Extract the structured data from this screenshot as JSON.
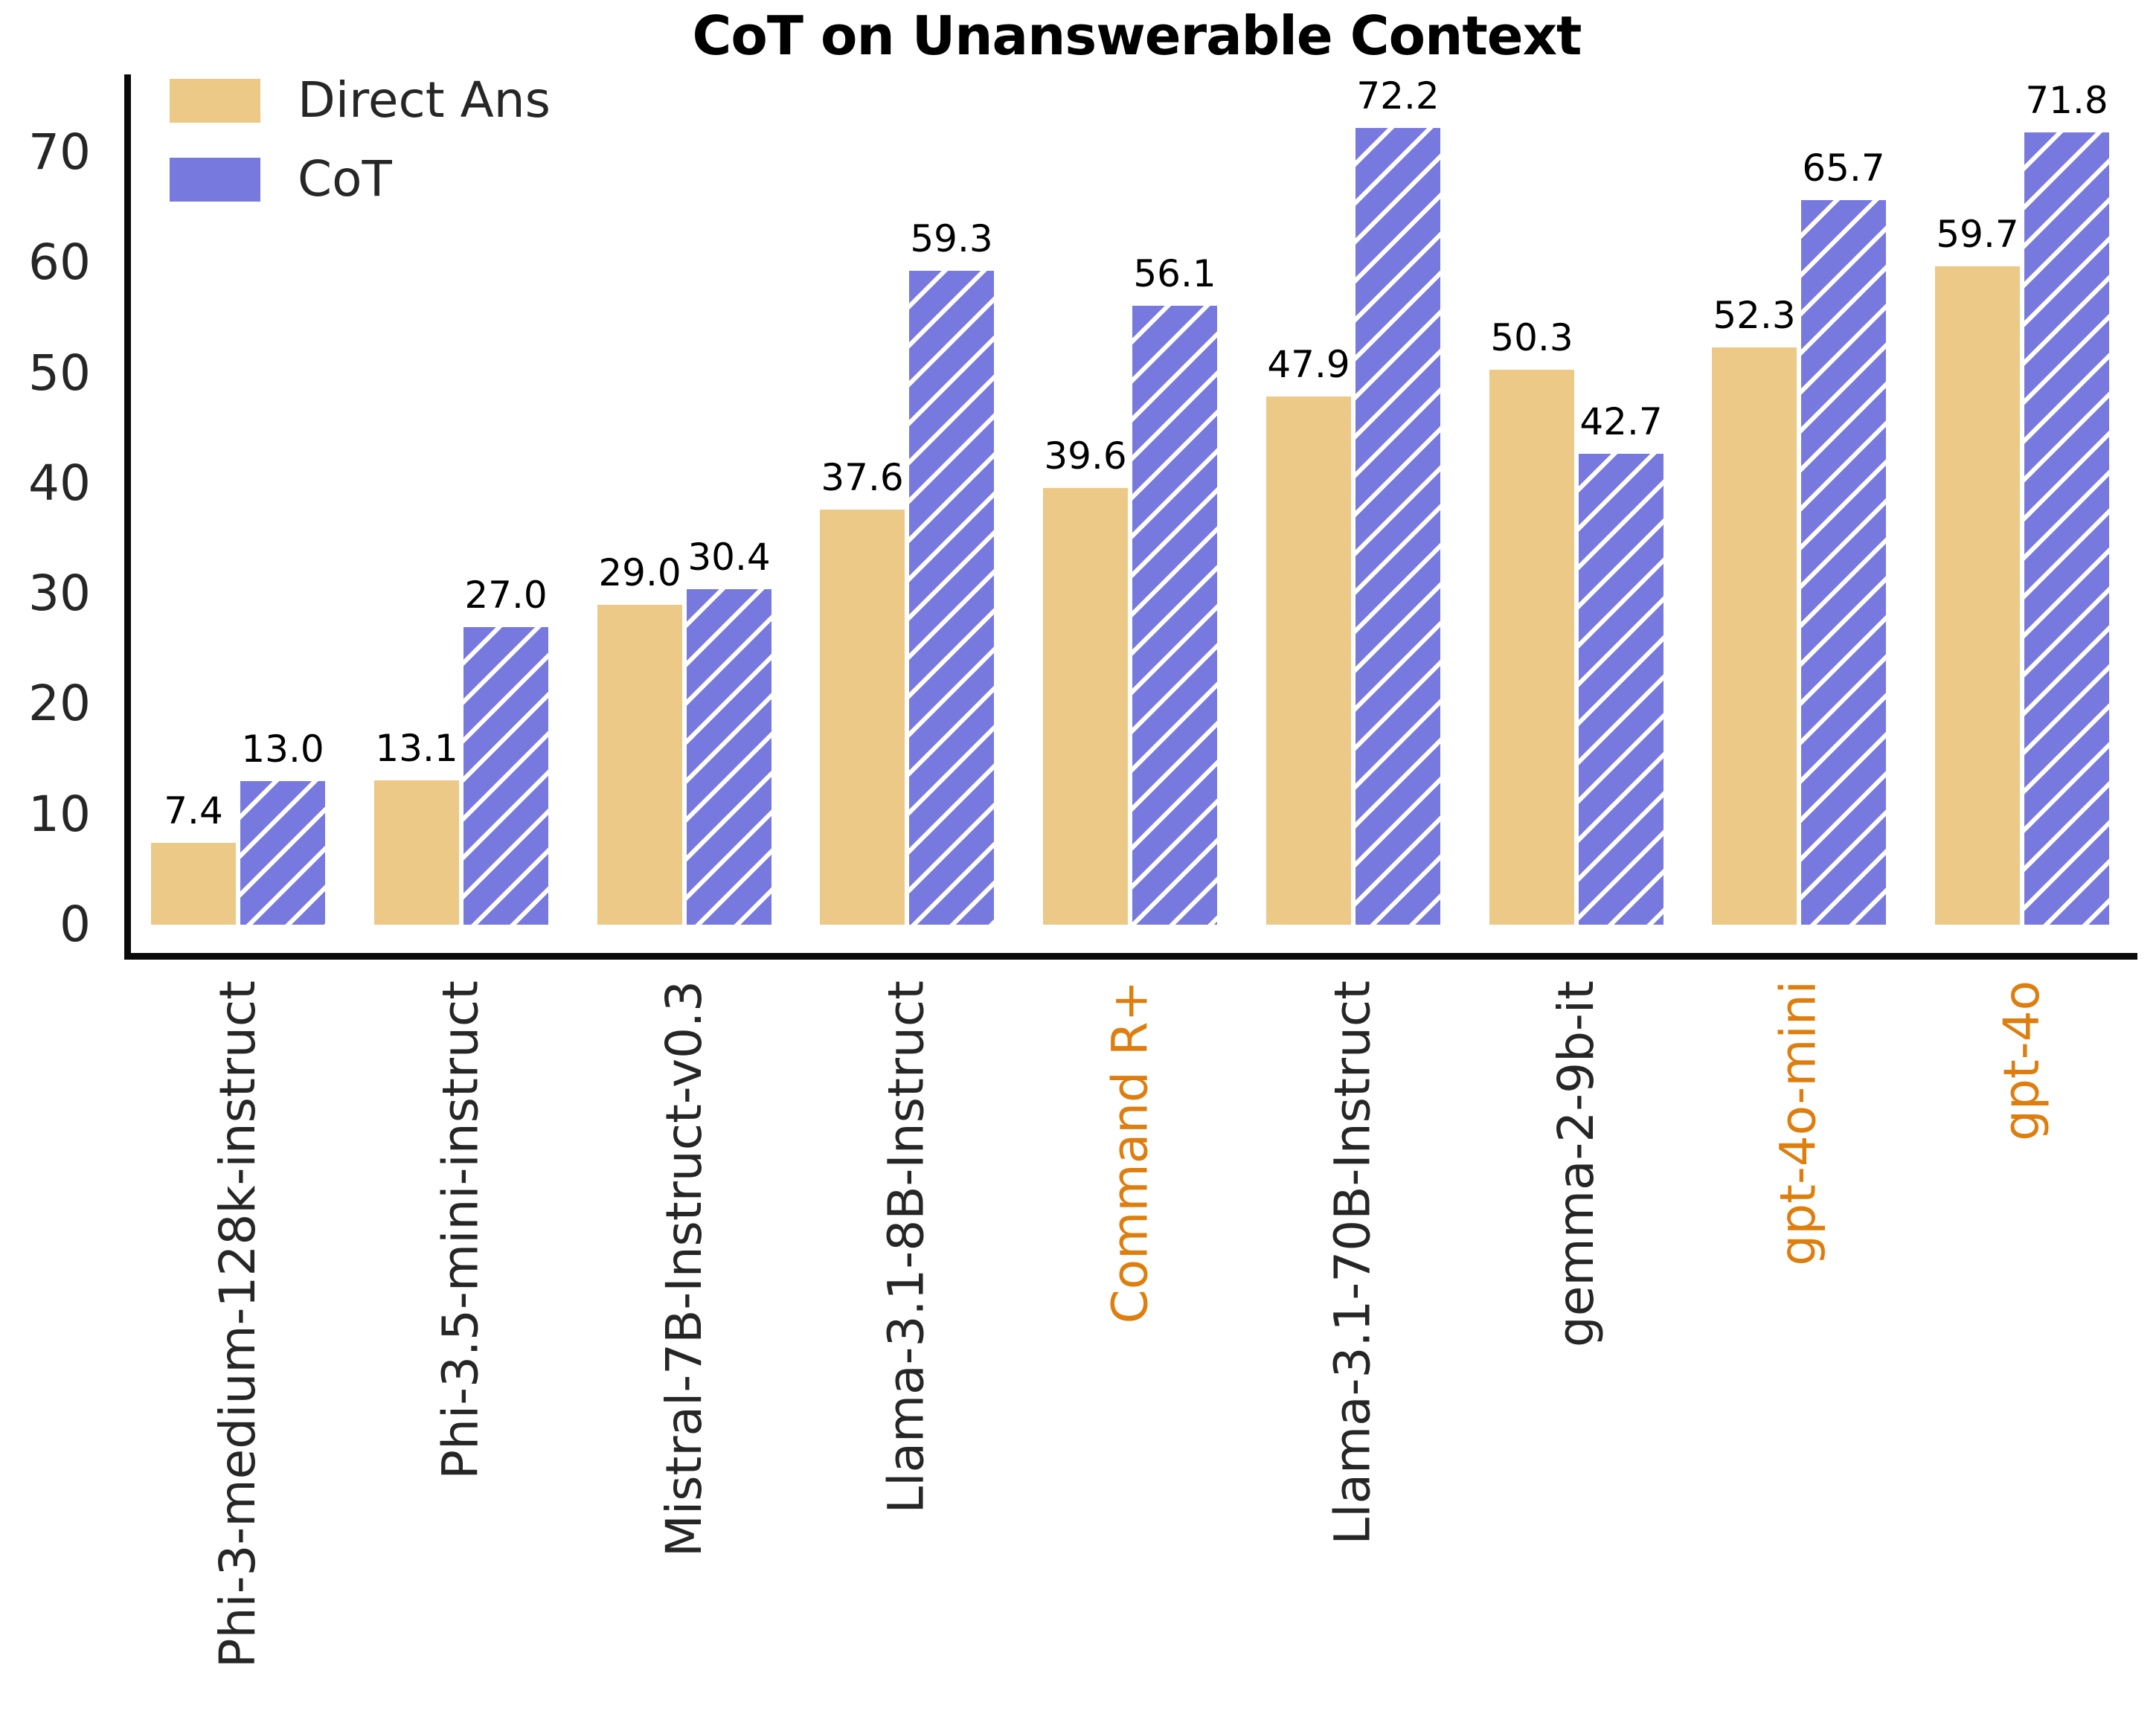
{
  "title": "CoT on Unanswerable Context",
  "legend": {
    "items": [
      {
        "label": "Direct Ans",
        "color": "#EDC987",
        "hatched": false
      },
      {
        "label": "CoT",
        "color": "#7879DE",
        "hatched": false
      }
    ]
  },
  "y_axis": {
    "ticks": [
      0,
      10,
      20,
      30,
      40,
      50,
      60,
      70
    ]
  },
  "chart_data": {
    "type": "bar",
    "title": "CoT on Unanswerable Context",
    "categories": [
      "Phi-3-medium-128k-instruct",
      "Phi-3.5-mini-instruct",
      "Mistral-7B-Instruct-v0.3",
      "Llama-3.1-8B-Instruct",
      "Command R+",
      "Llama-3.1-70B-Instruct",
      "gemma-2-9b-it",
      "gpt-4o-mini",
      "gpt-4o"
    ],
    "category_highlighted": [
      false,
      false,
      false,
      false,
      true,
      false,
      false,
      true,
      true
    ],
    "series": [
      {
        "name": "Direct Ans",
        "values": [
          7.4,
          13.1,
          29.0,
          37.6,
          39.6,
          47.9,
          50.3,
          52.3,
          59.7
        ],
        "style": "solid"
      },
      {
        "name": "CoT",
        "values": [
          13.0,
          27.0,
          30.4,
          59.3,
          56.1,
          72.2,
          42.7,
          65.7,
          71.8
        ],
        "style": "hatched"
      }
    ],
    "value_labels_decimals": 1,
    "xlabel": "",
    "ylabel": "",
    "ylim": [
      0,
      77
    ],
    "grid": false,
    "legend_position": "upper-left-inside",
    "colors": {
      "direct_ans": "#EDC987",
      "cot": "#7879DE",
      "hatch": "#FFFFFF",
      "axis": "#0A0A0A",
      "tick_label": "#262626",
      "highlight_tick_label": "#DE7E0E",
      "value_label": "#000000",
      "title": "#000000"
    }
  }
}
